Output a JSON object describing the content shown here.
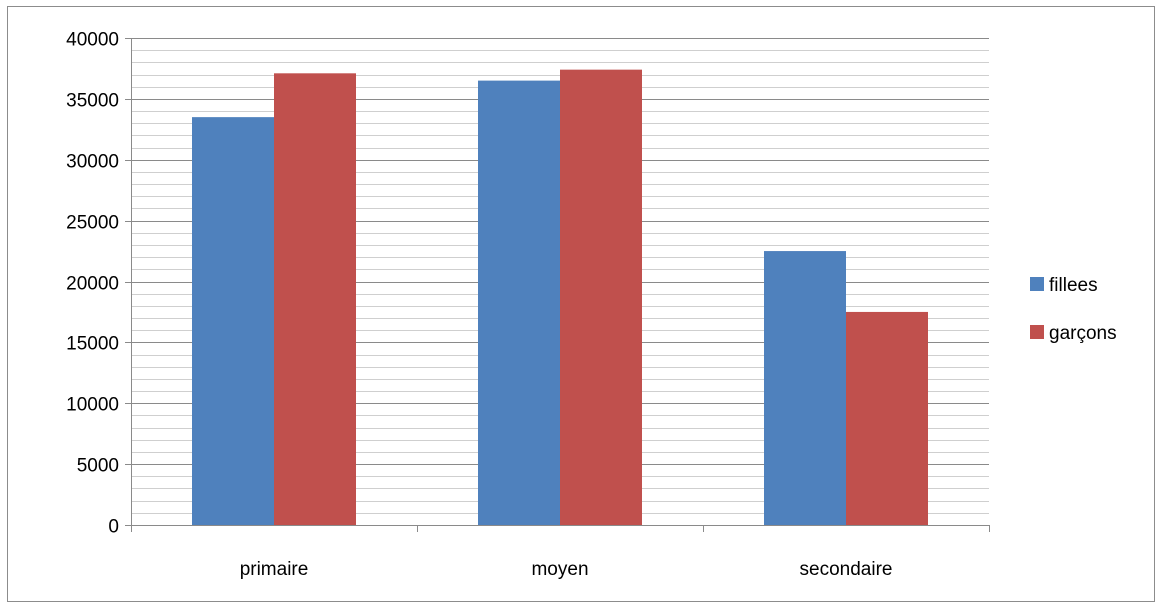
{
  "chart_data": {
    "type": "bar",
    "categories": [
      "primaire",
      "moyen",
      "secondaire"
    ],
    "series": [
      {
        "name": "fillees",
        "values": [
          33500,
          36500,
          22500
        ],
        "color": "#4f81bd"
      },
      {
        "name": "garçons",
        "values": [
          37100,
          37400,
          17500
        ],
        "color": "#c0504d"
      }
    ],
    "title": "",
    "xlabel": "",
    "ylabel": "",
    "ylim": [
      0,
      40000
    ],
    "y_major_step": 5000,
    "y_tick_labels": [
      "0",
      "5000",
      "10000",
      "15000",
      "20000",
      "25000",
      "30000",
      "35000",
      "40000"
    ],
    "y_minor_step": 1000,
    "grid": true,
    "legend_position": "right"
  }
}
